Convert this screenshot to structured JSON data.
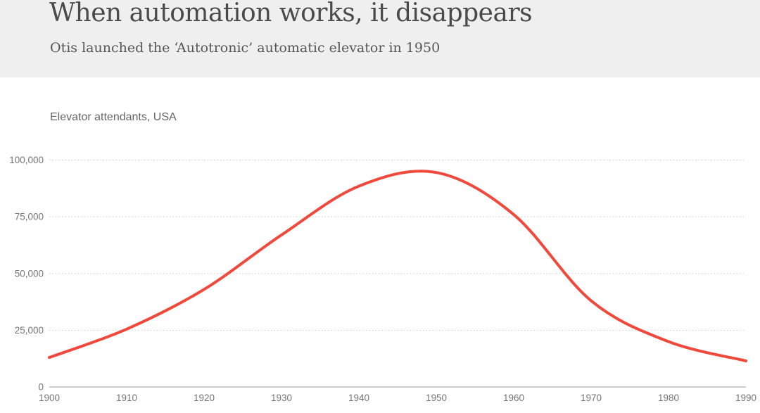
{
  "header": {
    "title": "When automation works, it disappears",
    "subtitle": "Otis launched the ‘Autotronic’ automatic elevator in 1950",
    "background_color": "#efefef"
  },
  "chart": {
    "label": "Elevator attendants, USA"
  },
  "chart_data": {
    "type": "line",
    "title": "When automation works, it disappears",
    "subtitle": "Otis launched the ‘Autotronic’ automatic elevator in 1950",
    "series_label": "Elevator attendants, USA",
    "x": [
      1900,
      1910,
      1920,
      1930,
      1940,
      1950,
      1960,
      1970,
      1980,
      1990
    ],
    "values": [
      13000,
      25500,
      43000,
      67000,
      88500,
      94500,
      76000,
      38000,
      20000,
      11500
    ],
    "x_tick_labels": [
      "1900",
      "1910",
      "1920",
      "1930",
      "1940",
      "1950",
      "1960",
      "1970",
      "1980",
      "1990"
    ],
    "y_ticks": [
      0,
      25000,
      50000,
      75000,
      100000
    ],
    "y_tick_labels": [
      "0",
      "25,000",
      "50,000",
      "75,000",
      "100,000"
    ],
    "xlim": [
      1900,
      1990
    ],
    "ylim": [
      0,
      100000
    ],
    "grid": "horizontal-dotted",
    "legend": "none",
    "line_color": "#f0493c",
    "gridline_color": "#cccccc",
    "axis_line_color": "#999999",
    "tick_label_color": "#757575"
  }
}
